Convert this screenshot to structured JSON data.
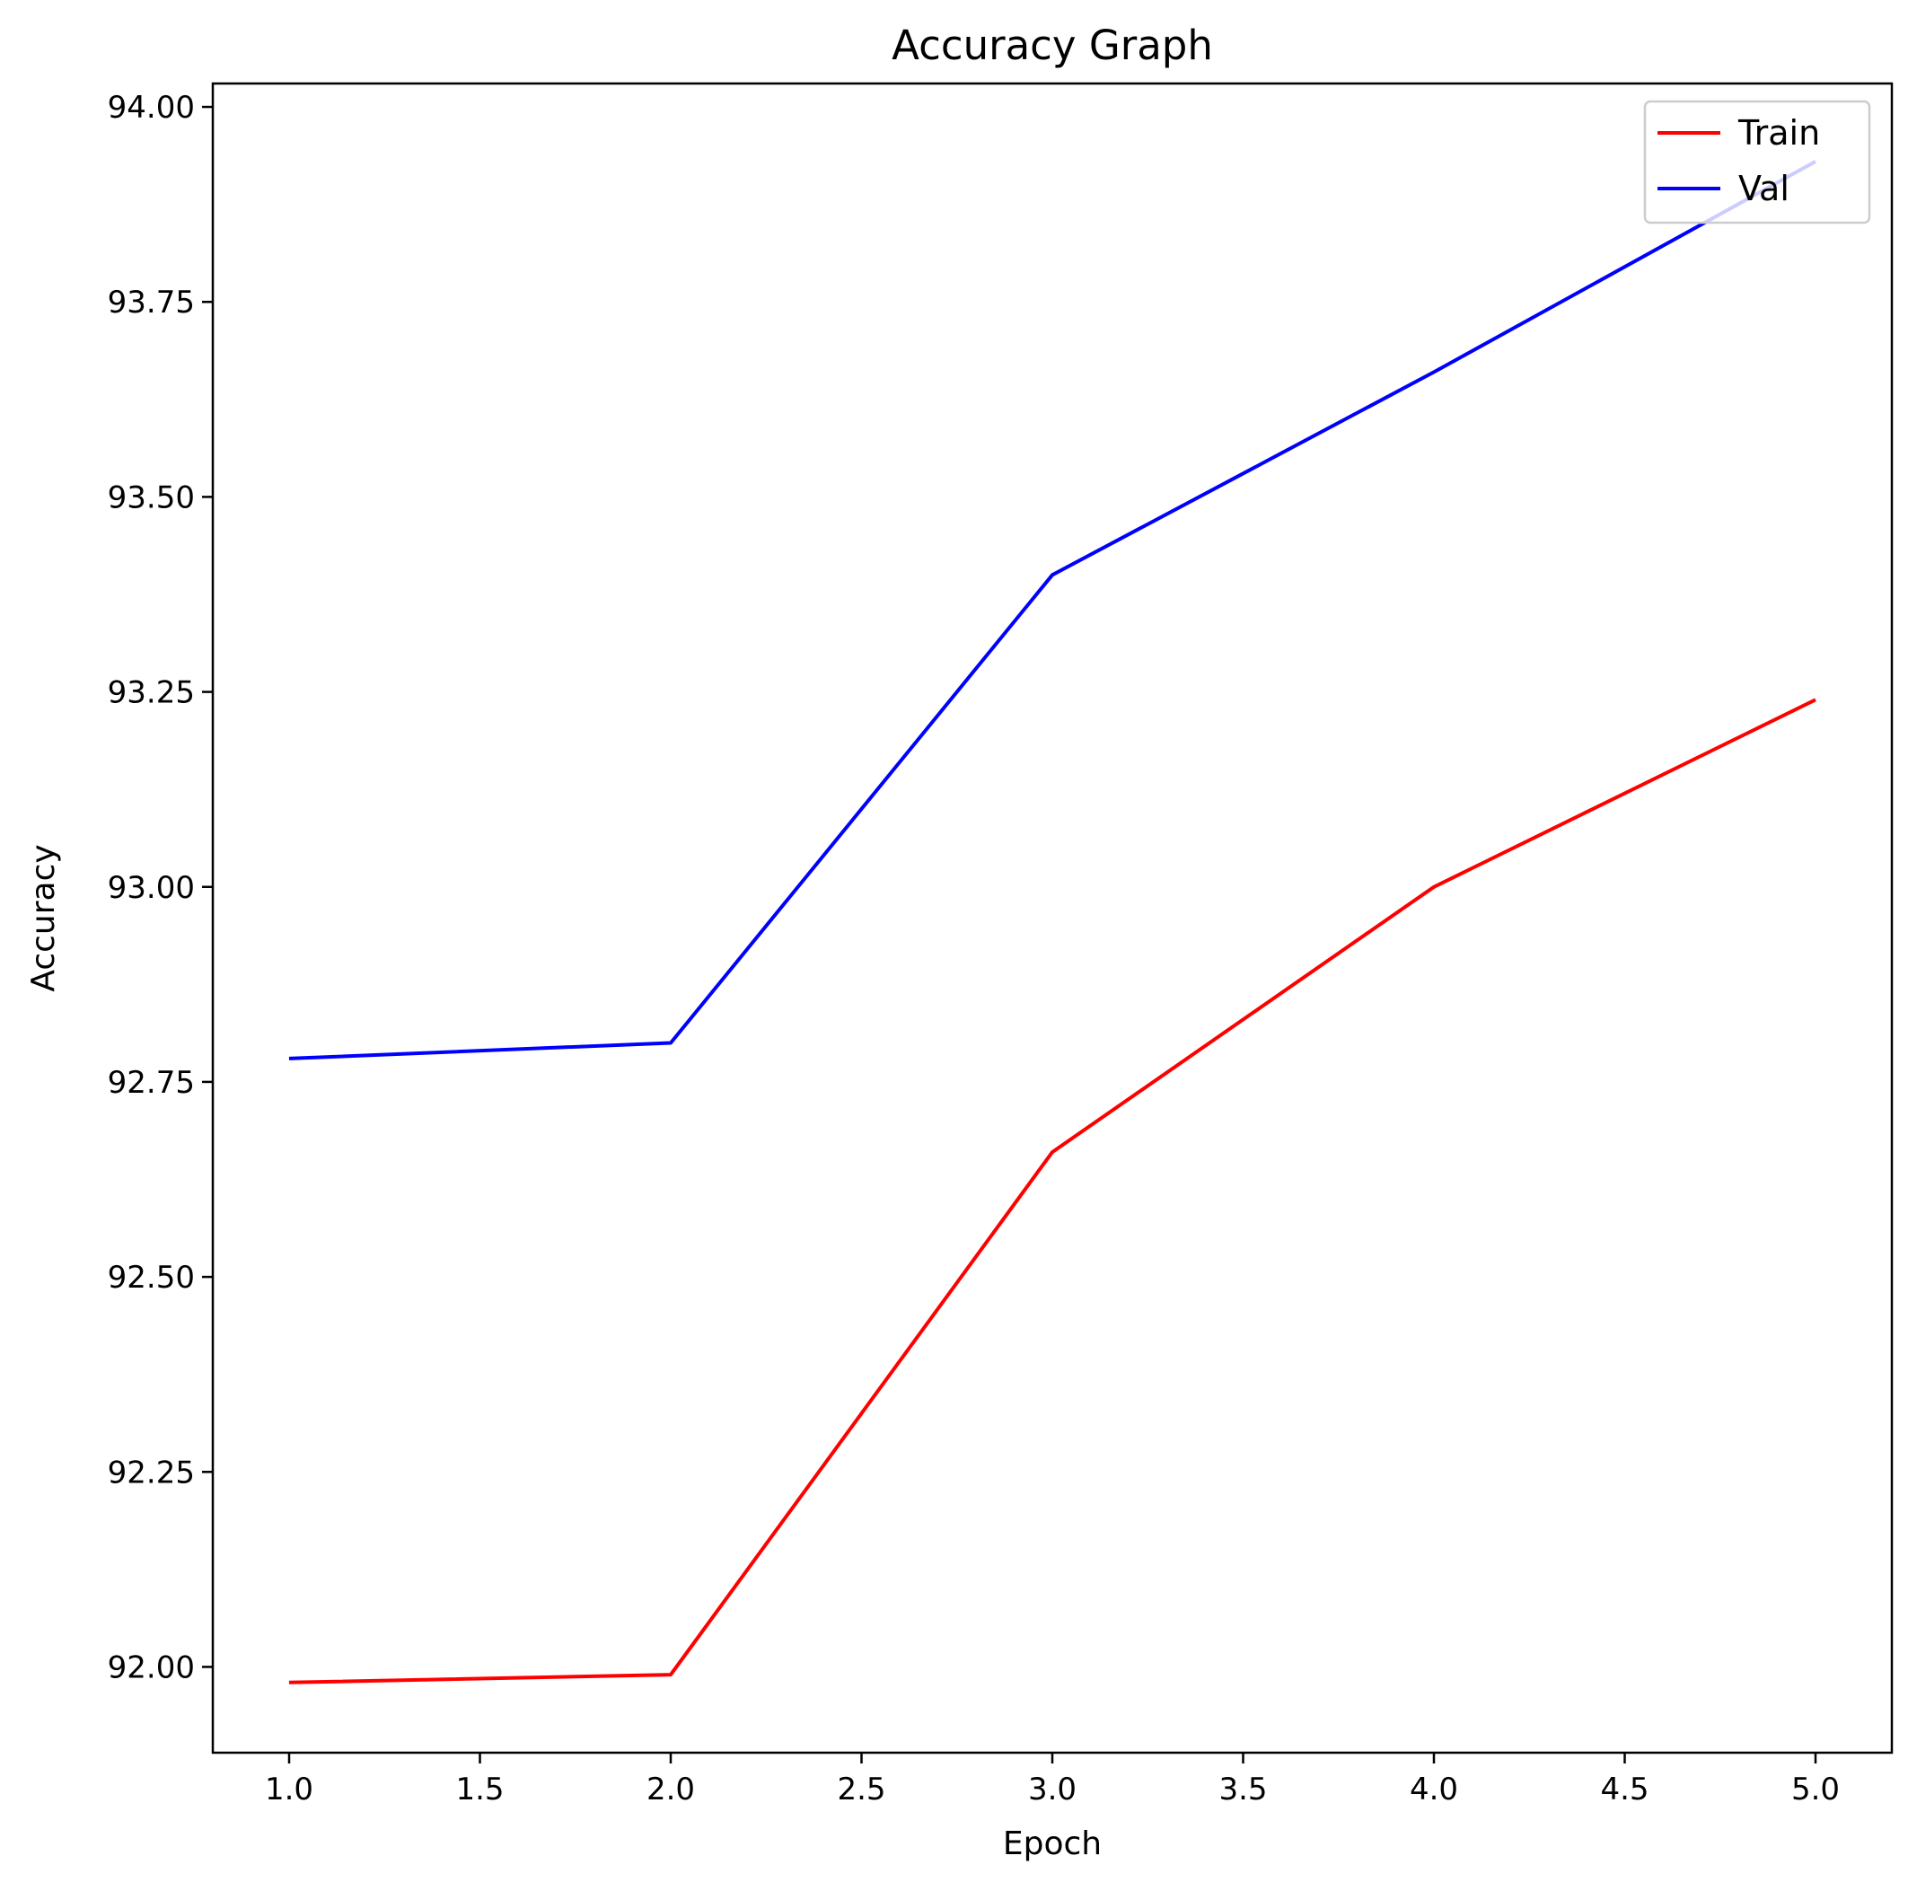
{
  "chart_data": {
    "type": "line",
    "title": "Accuracy Graph",
    "xlabel": "Epoch",
    "ylabel": "Accuracy",
    "x": [
      1,
      2,
      3,
      4,
      5
    ],
    "xlim": [
      0.8,
      5.2
    ],
    "ylim": [
      91.89,
      94.03
    ],
    "xticks": [
      "1.0",
      "1.5",
      "2.0",
      "2.5",
      "3.0",
      "3.5",
      "4.0",
      "4.5",
      "5.0"
    ],
    "yticks": [
      "92.00",
      "92.25",
      "92.50",
      "92.75",
      "93.00",
      "93.25",
      "93.50",
      "93.75",
      "94.00"
    ],
    "grid": false,
    "legend_position": "top-right",
    "series": [
      {
        "name": "Train",
        "color": "#ff0000",
        "values": [
          91.98,
          91.99,
          92.66,
          93.0,
          93.24
        ]
      },
      {
        "name": "Val",
        "color": "#0000ff",
        "values": [
          92.78,
          92.8,
          93.4,
          93.66,
          93.93
        ]
      }
    ]
  }
}
